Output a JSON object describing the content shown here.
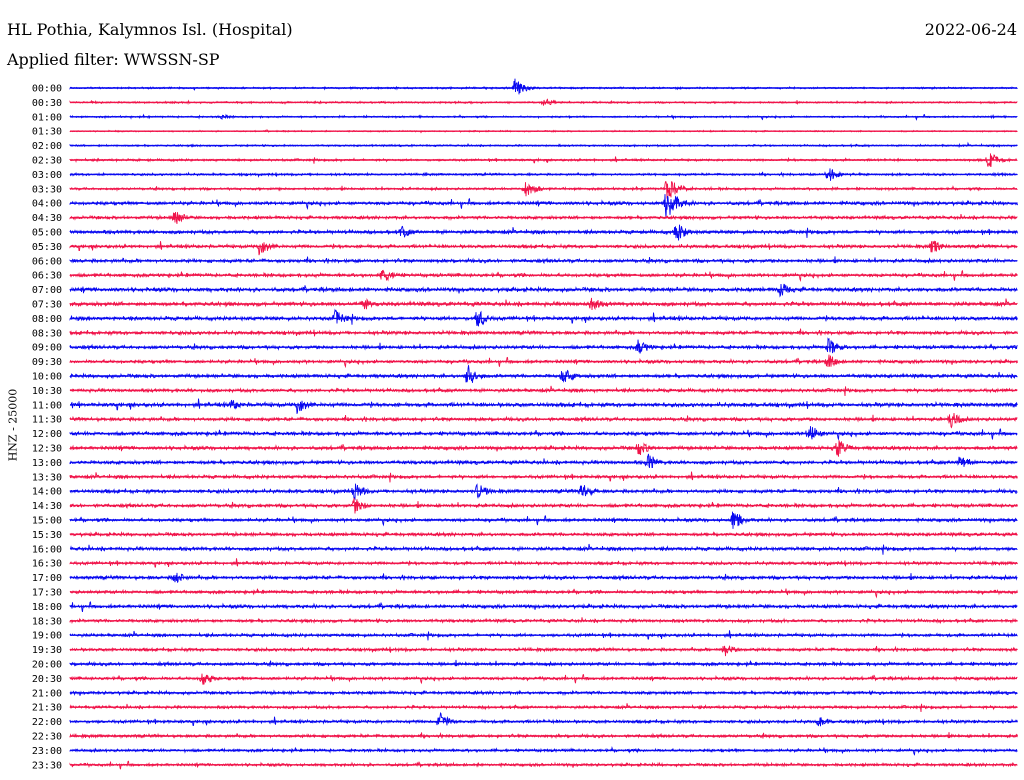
{
  "header": {
    "station": "HL Pothia, Kalymnos Isl. (Hospital)",
    "date": "2022-06-24",
    "filter_label": "Applied filter: WWSSN-SP"
  },
  "channel_label": "HNZ - 25000",
  "colors": {
    "even_trace": "#0a0af0",
    "odd_trace": "#f0144a",
    "background": "#ffffff"
  },
  "chart_data": {
    "type": "line",
    "title": "HL Pothia, Kalymnos Isl. (Hospital)",
    "subtitle": "Applied filter: WWSSN-SP",
    "ylabel": "HNZ - 25000",
    "xlabel": "",
    "grid": false,
    "row_labels": [
      "00:00",
      "00:30",
      "01:00",
      "01:30",
      "02:00",
      "02:30",
      "03:00",
      "03:30",
      "04:00",
      "04:30",
      "05:00",
      "05:30",
      "06:00",
      "06:30",
      "07:00",
      "07:30",
      "08:00",
      "08:30",
      "09:00",
      "09:30",
      "10:00",
      "10:30",
      "11:00",
      "11:30",
      "12:00",
      "12:30",
      "13:00",
      "13:30",
      "14:00",
      "14:30",
      "15:00",
      "15:30",
      "16:00",
      "16:30",
      "17:00",
      "17:30",
      "18:00",
      "18:30",
      "19:00",
      "19:30",
      "20:00",
      "20:30",
      "21:00",
      "21:30",
      "22:00",
      "22:30",
      "23:00",
      "23:30"
    ],
    "noise_level": [
      0.8,
      0.8,
      0.8,
      0.6,
      0.8,
      1.0,
      1.0,
      1.1,
      1.6,
      1.4,
      1.6,
      1.5,
      1.6,
      1.6,
      1.8,
      1.8,
      1.7,
      1.6,
      1.6,
      1.5,
      1.6,
      1.5,
      1.8,
      1.6,
      1.7,
      1.6,
      1.6,
      1.5,
      1.6,
      1.6,
      1.5,
      1.5,
      1.6,
      1.4,
      1.6,
      1.5,
      1.6,
      1.4,
      1.4,
      1.4,
      1.5,
      1.4,
      1.4,
      1.3,
      1.4,
      1.4,
      1.3,
      1.3
    ],
    "events": [
      {
        "row": "00:00",
        "at": 0.47,
        "amp": 10
      },
      {
        "row": "00:30",
        "at": 0.5,
        "amp": 5
      },
      {
        "row": "01:00",
        "at": 0.16,
        "amp": 3
      },
      {
        "row": "02:30",
        "at": 0.97,
        "amp": 9
      },
      {
        "row": "03:00",
        "at": 0.8,
        "amp": 9
      },
      {
        "row": "03:30",
        "at": 0.48,
        "amp": 10
      },
      {
        "row": "03:30",
        "at": 0.63,
        "amp": 14
      },
      {
        "row": "04:00",
        "at": 0.63,
        "amp": 20
      },
      {
        "row": "04:30",
        "at": 0.11,
        "amp": 9
      },
      {
        "row": "05:00",
        "at": 0.64,
        "amp": 11
      },
      {
        "row": "05:00",
        "at": 0.35,
        "amp": 7
      },
      {
        "row": "05:30",
        "at": 0.2,
        "amp": 11
      },
      {
        "row": "05:30",
        "at": 0.91,
        "amp": 8
      },
      {
        "row": "06:30",
        "at": 0.33,
        "amp": 9
      },
      {
        "row": "07:00",
        "at": 0.75,
        "amp": 9
      },
      {
        "row": "07:30",
        "at": 0.55,
        "amp": 9
      },
      {
        "row": "07:30",
        "at": 0.31,
        "amp": 7
      },
      {
        "row": "08:00",
        "at": 0.43,
        "amp": 10
      },
      {
        "row": "08:00",
        "at": 0.28,
        "amp": 9
      },
      {
        "row": "09:00",
        "at": 0.6,
        "amp": 9
      },
      {
        "row": "09:00",
        "at": 0.8,
        "amp": 10
      },
      {
        "row": "09:30",
        "at": 0.8,
        "amp": 8
      },
      {
        "row": "10:00",
        "at": 0.42,
        "amp": 12
      },
      {
        "row": "10:00",
        "at": 0.52,
        "amp": 9
      },
      {
        "row": "11:00",
        "at": 0.24,
        "amp": 11
      },
      {
        "row": "11:00",
        "at": 0.17,
        "amp": 6
      },
      {
        "row": "11:30",
        "at": 0.93,
        "amp": 9
      },
      {
        "row": "12:00",
        "at": 0.78,
        "amp": 11
      },
      {
        "row": "12:30",
        "at": 0.6,
        "amp": 9
      },
      {
        "row": "12:30",
        "at": 0.81,
        "amp": 10
      },
      {
        "row": "13:00",
        "at": 0.61,
        "amp": 10
      },
      {
        "row": "13:00",
        "at": 0.94,
        "amp": 9
      },
      {
        "row": "14:00",
        "at": 0.3,
        "amp": 10
      },
      {
        "row": "14:00",
        "at": 0.43,
        "amp": 9
      },
      {
        "row": "14:00",
        "at": 0.54,
        "amp": 9
      },
      {
        "row": "14:30",
        "at": 0.3,
        "amp": 9
      },
      {
        "row": "15:00",
        "at": 0.7,
        "amp": 11
      },
      {
        "row": "17:00",
        "at": 0.11,
        "amp": 7
      },
      {
        "row": "19:30",
        "at": 0.69,
        "amp": 8
      },
      {
        "row": "20:30",
        "at": 0.14,
        "amp": 9
      },
      {
        "row": "22:00",
        "at": 0.39,
        "amp": 10
      },
      {
        "row": "22:00",
        "at": 0.79,
        "amp": 6
      }
    ]
  }
}
